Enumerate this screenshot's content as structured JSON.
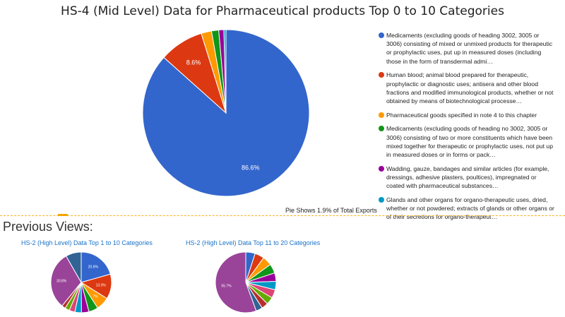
{
  "page": {
    "title": "HS-4 (Mid Level) Data for Pharmaceutical products Top 0 to 10 Categories",
    "pie_note": "Pie Shows 1.9% of Total Exports",
    "previous_views_title": "Previous Views:"
  },
  "chart_data": [
    {
      "type": "pie",
      "title": "HS-4 (Mid Level) Data for Pharmaceutical products Top 0 to 10 Categories",
      "labels": [
        "Medicaments (excluding goods of heading 3002, 3005 or 3006) consisting of mixed or unmixed products for therapeutic or prophylactic uses, put up in measured doses (including those in the form of transdermal admi…",
        "Human blood; animal blood prepared for therapeutic, prophylactic or diagnostic uses; antisera and other blood fractions and modified immunological products, whether or not obtained by means of biotechnological processe…",
        "Pharmaceutical goods specified in note 4 to this chapter",
        "Medicaments (excluding goods of heading no 3002, 3005 or 3006) consisting of two or more constituents which have been mixed together for therapeutic or prophylactic uses, not put up in measured doses or in forms or pack…",
        "Wadding, gauze, bandages and similar articles (for example, dressings, adhesive plasters, poultices), impregnated or coated with pharmaceutical substances…",
        "Glands and other organs for organo-therapeutic uses, dried, whether or not powdered; extracts of glands or other organs or of their secretions for organo-therapeut…"
      ],
      "values": [
        86.6,
        8.6,
        2.0,
        1.4,
        1.0,
        0.4
      ],
      "data_labels": [
        "86.6%",
        "8.6%",
        "",
        "",
        "",
        ""
      ],
      "colors": [
        "#3366cc",
        "#dc3912",
        "#ff9900",
        "#109618",
        "#990099",
        "#0099c6"
      ],
      "legend_position": "right"
    },
    {
      "type": "pie",
      "title": "HS-2 (High Level) Data Top 1 to 10 Categories",
      "values": [
        20.6,
        13.3,
        7.0,
        5.0,
        4.0,
        3.5,
        3.0,
        2.5,
        2.0,
        30.8,
        8.3
      ],
      "data_labels": [
        "20.6%",
        "13.3%",
        "7%",
        "",
        "",
        "",
        "",
        "",
        "",
        "30.8%",
        ""
      ],
      "colors": [
        "#3366cc",
        "#dc3912",
        "#ff9900",
        "#109618",
        "#990099",
        "#0099c6",
        "#dd4477",
        "#66aa00",
        "#b82e2e",
        "#994499",
        "#316395"
      ]
    },
    {
      "type": "pie",
      "title": "HS-2 (High Level) Data Top 11 to 20 Categories",
      "values": [
        5.0,
        5.0,
        5.0,
        5.0,
        4.5,
        4.5,
        4.5,
        4.0,
        3.5,
        3.5,
        55.7
      ],
      "data_labels": [
        "",
        "",
        "",
        "",
        "",
        "",
        "",
        "",
        "",
        "",
        "55.7%"
      ],
      "colors": [
        "#3366cc",
        "#dc3912",
        "#ff9900",
        "#109618",
        "#990099",
        "#0099c6",
        "#dd4477",
        "#66aa00",
        "#b82e2e",
        "#316395",
        "#994499"
      ]
    }
  ]
}
